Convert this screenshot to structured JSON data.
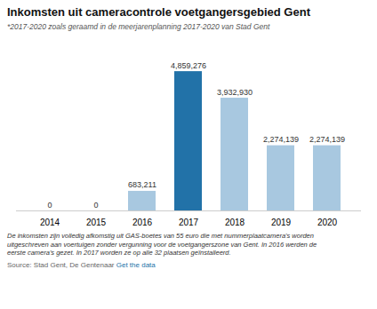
{
  "chart_data": {
    "type": "bar",
    "title": "Inkomsten uit cameracontrole voetgangersgebied Gent",
    "subtitle": "*2017-2020 zoals geraamd in de meerjarenplanning 2017-2020 van Stad Gent",
    "categories": [
      "2014",
      "2015",
      "2016",
      "2017",
      "2018",
      "2019",
      "2020"
    ],
    "values": [
      0,
      0,
      683211,
      4859276,
      3932930,
      2274139,
      2274139
    ],
    "value_labels": [
      "0",
      "0",
      "683,211",
      "4,859,276",
      "3,932,930",
      "2,274,139",
      "2,274,139"
    ],
    "colors": [
      "#a8c8e0",
      "#a8c8e0",
      "#a8c8e0",
      "#2272a8",
      "#a8c8e0",
      "#a8c8e0",
      "#a8c8e0"
    ],
    "data_labels": true,
    "ylim": [
      0,
      5700000
    ],
    "tick_labels": "x",
    "grid": false,
    "footnote": "De inkomsten zijn volledig afkomstig uit GAS-boetes van 55 euro die met nummerplaatcamera's worden\nuitgeschreven aan voertuigen zonder vergunning voor de voetgangerszone van Gent. In 2016 werden de\neerste camera's gezet. In 2017 worden ze op alle 32 plaatsen geïnstalleerd.",
    "source": "Source: Stad Gent, De Gentenaar ",
    "source_link": "Get the data",
    "source_link_color": "#2272a8"
  }
}
